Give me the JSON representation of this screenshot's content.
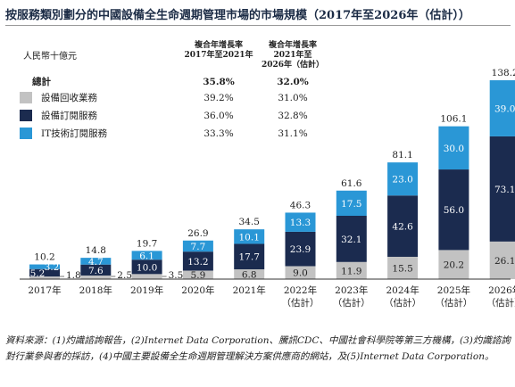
{
  "title": "按服務類別劃分的中國設備全生命週期管理市場的市場規模（2017年至2026年（估計））",
  "unit_label": "人民幣十億元",
  "cagr_headers": {
    "col1": [
      "複合年增長率",
      "2017年至2021年"
    ],
    "col2": [
      "複合年增長率",
      "2021年至",
      "2026年（估計）"
    ]
  },
  "legend": {
    "total": {
      "label": "總計",
      "cagr1": "35.8%",
      "cagr2": "32.0%"
    },
    "items": [
      {
        "label": "設備回收業務",
        "color": "#c2c2c2",
        "cagr1": "39.2%",
        "cagr2": "31.0%"
      },
      {
        "label": "設備訂閱服務",
        "color": "#1b2b4f",
        "cagr1": "36.0%",
        "cagr2": "32.8%"
      },
      {
        "label": "IT技術訂閱服務",
        "color": "#2a97d6",
        "cagr1": "33.3%",
        "cagr2": "31.1%"
      }
    ]
  },
  "chart_data": {
    "type": "bar",
    "stacked": true,
    "categories": [
      "2017年",
      "2018年",
      "2019年",
      "2020年",
      "2021年",
      "2022年\n（估計）",
      "2023年\n（估計）",
      "2024年\n（估計）",
      "2025年\n（估計）",
      "2026年\n（估計）"
    ],
    "series": [
      {
        "name": "設備回收業務",
        "color": "#c2c2c2",
        "values": [
          1.8,
          2.5,
          3.5,
          5.9,
          6.8,
          9.0,
          11.9,
          15.5,
          20.2,
          26.1
        ]
      },
      {
        "name": "設備訂閱服務",
        "color": "#1b2b4f",
        "values": [
          5.2,
          7.6,
          10.0,
          13.2,
          17.7,
          23.9,
          32.1,
          42.6,
          56.0,
          73.1
        ]
      },
      {
        "name": "IT技術訂閱服務",
        "color": "#2a97d6",
        "values": [
          3.2,
          4.7,
          6.1,
          7.7,
          10.1,
          13.3,
          17.5,
          23.0,
          30.0,
          39.0
        ]
      }
    ],
    "totals": [
      10.2,
      14.8,
      19.7,
      26.9,
      34.5,
      46.3,
      61.6,
      81.1,
      106.1,
      138.2
    ],
    "value_labels": {
      "gray": [
        "1.8",
        "2.5",
        "3.5",
        "5.9",
        "6.8",
        "9.0",
        "11.9",
        "15.5",
        "20.2",
        "26.1"
      ],
      "navy": [
        "5.2",
        "7.6",
        "10.0",
        "13.2",
        "17.7",
        "23.9",
        "32.1",
        "42.6",
        "56.0",
        "73.1"
      ],
      "blue": [
        "3.2",
        "4.7",
        "6.1",
        "7.7",
        "10.1",
        "13.3",
        "17.5",
        "23.0",
        "30.0",
        "39.0"
      ],
      "total": [
        "10.2",
        "14.8",
        "19.7",
        "26.9",
        "34.5",
        "46.3",
        "61.6",
        "81.1",
        "106.1",
        "138.2"
      ]
    },
    "ylim": [
      0,
      140
    ],
    "legend_position": "top-left"
  },
  "source": "資料來源：(1)灼識諮詢報告，(2)Internet Data Corporation、騰訊CDC、中國社會科學院等第三方機構，(3)灼識諮詢對行業參與者的採訪，(4)中國主要設備全生命週期管理解決方案供應商的網站，及(5)Internet Data Corporation。"
}
